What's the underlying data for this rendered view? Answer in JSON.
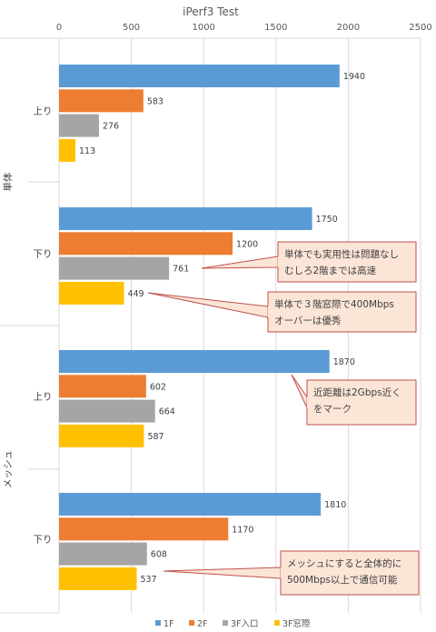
{
  "chart_data": {
    "type": "bar",
    "orientation": "horizontal",
    "title": "iPerf3 Test",
    "x_axis_position": "top",
    "xlim": [
      0,
      2500
    ],
    "x_ticks": [
      0,
      500,
      1000,
      1500,
      2000,
      2500
    ],
    "grid": true,
    "legend_position": "bottom",
    "groups": [
      {
        "label": "単体",
        "categories": [
          "上り",
          "下り"
        ]
      },
      {
        "label": "メッシュ",
        "categories": [
          "上り",
          "下り"
        ]
      }
    ],
    "series": [
      {
        "name": "1F",
        "color": "#5B9BD5",
        "values": [
          1940,
          1750,
          1870,
          1810
        ]
      },
      {
        "name": "2F",
        "color": "#ED7D31",
        "values": [
          583,
          1200,
          602,
          1170
        ]
      },
      {
        "name": "3F入口",
        "color": "#A5A5A5",
        "values": [
          276,
          761,
          664,
          608
        ]
      },
      {
        "name": "3F窓際",
        "color": "#FFC000",
        "values": [
          113,
          449,
          587,
          537
        ]
      }
    ],
    "annotations": [
      {
        "lines": [
          "単体でも実用性は問題なし",
          "むしろ2階までは高速"
        ],
        "category_index": 1,
        "series_index": 2
      },
      {
        "lines": [
          "単体で３階窓際で400Mbps",
          "オーバーは優秀"
        ],
        "category_index": 1,
        "series_index": 3
      },
      {
        "lines": [
          "近距離は2Gbps近く",
          "をマーク"
        ],
        "category_index": 2,
        "series_index": 0
      },
      {
        "lines": [
          "メッシュにすると全体的に",
          "500Mbps以上で通信可能"
        ],
        "category_index": 3,
        "series_index": 3
      }
    ],
    "annotation_style": {
      "fill": "#FBE5D6",
      "stroke": "#C0504D"
    }
  }
}
